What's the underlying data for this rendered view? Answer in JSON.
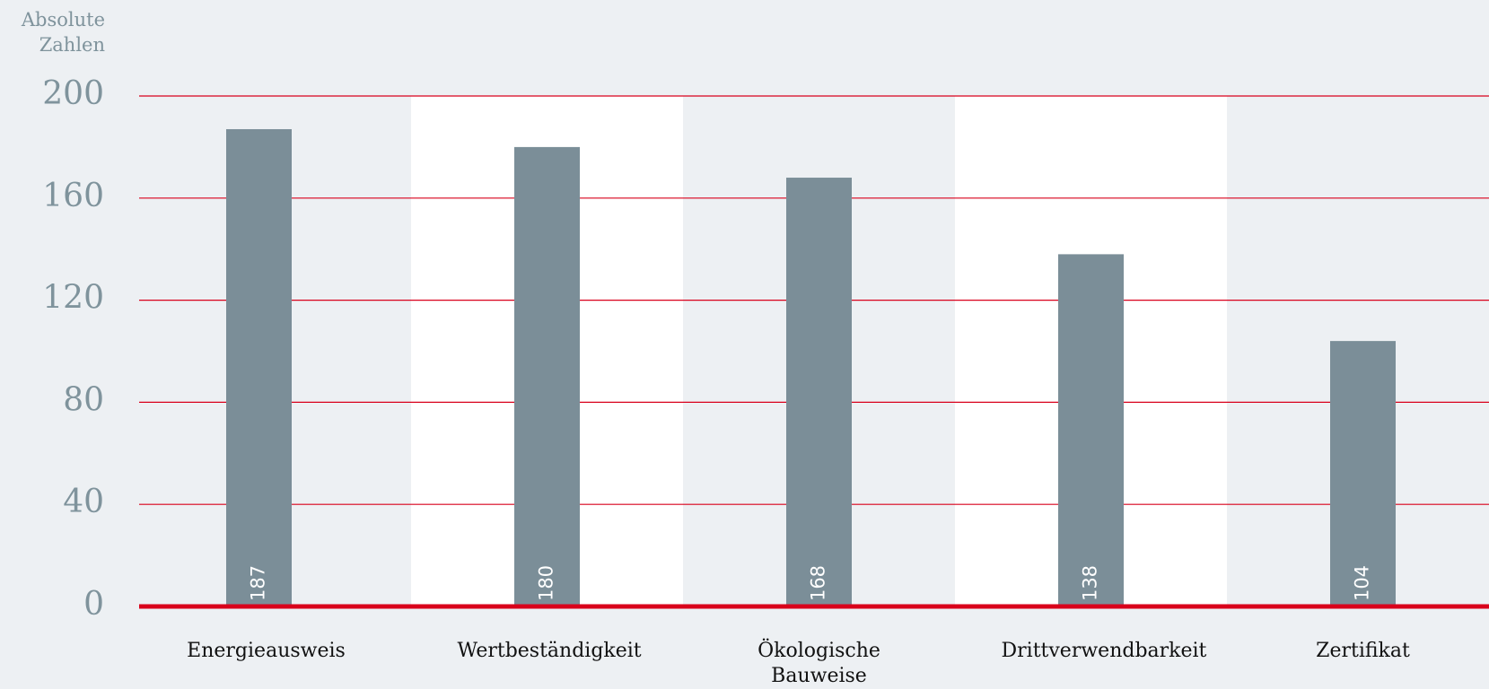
{
  "chart_data": {
    "type": "bar",
    "y_axis_label": "Absolute Zahlen",
    "categories": [
      "Energieausweis",
      "Wertbeständigkeit",
      "Ökologische Bauweise",
      "Drittverwendbarkeit",
      "Zertifikat"
    ],
    "values": [
      187,
      180,
      168,
      138,
      104
    ],
    "color": "#7b8e98",
    "grid_color": "#d9001b",
    "ylim": [
      0,
      200
    ],
    "yticks": [
      0,
      40,
      80,
      120,
      160,
      200
    ],
    "grid": true
  }
}
